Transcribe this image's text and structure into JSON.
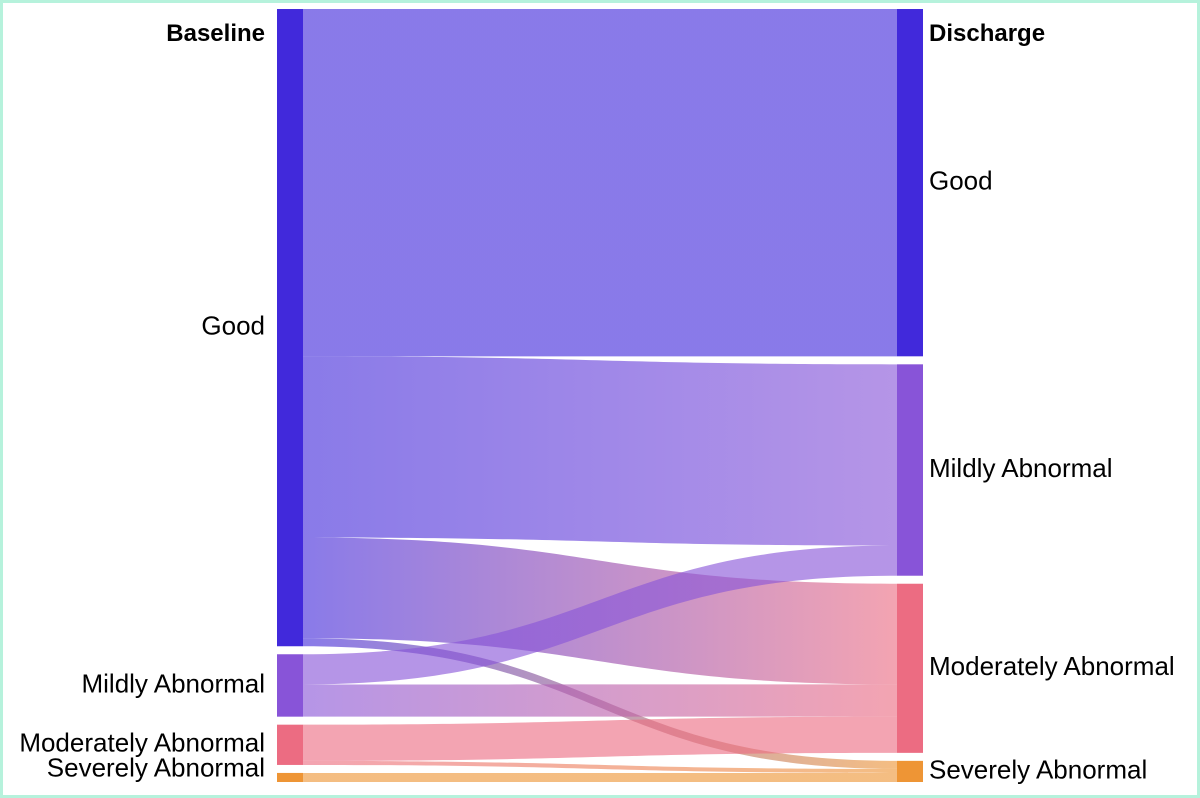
{
  "chart_data": {
    "type": "sankey",
    "columns": [
      {
        "key": "baseline",
        "title": "Baseline"
      },
      {
        "key": "discharge",
        "title": "Discharge"
      }
    ],
    "nodes": [
      {
        "id": "b_good",
        "column": "baseline",
        "label": "Good",
        "color": "#4129DB"
      },
      {
        "id": "b_mild",
        "column": "baseline",
        "label": "Mildly Abnormal",
        "color": "#8854D8"
      },
      {
        "id": "b_mod",
        "column": "baseline",
        "label": "Moderately Abnormal",
        "color": "#EC6C82"
      },
      {
        "id": "b_sev",
        "column": "baseline",
        "label": "Severely Abnormal",
        "color": "#EE9535"
      },
      {
        "id": "d_good",
        "column": "discharge",
        "label": "Good",
        "color": "#4129DB"
      },
      {
        "id": "d_mild",
        "column": "discharge",
        "label": "Mildly Abnormal",
        "color": "#8854D8"
      },
      {
        "id": "d_mod",
        "column": "discharge",
        "label": "Moderately Abnormal",
        "color": "#EC6C82"
      },
      {
        "id": "d_sev",
        "column": "discharge",
        "label": "Severely Abnormal",
        "color": "#EE9535"
      }
    ],
    "links": [
      {
        "source": "b_good",
        "target": "d_good",
        "value": 345
      },
      {
        "source": "b_good",
        "target": "d_mild",
        "value": 180
      },
      {
        "source": "b_good",
        "target": "d_mod",
        "value": 100
      },
      {
        "source": "b_good",
        "target": "d_sev",
        "value": 8
      },
      {
        "source": "b_mild",
        "target": "d_mild",
        "value": 30
      },
      {
        "source": "b_mild",
        "target": "d_mod",
        "value": 32
      },
      {
        "source": "b_mod",
        "target": "d_mod",
        "value": 36
      },
      {
        "source": "b_mod",
        "target": "d_sev",
        "value": 4
      },
      {
        "source": "b_sev",
        "target": "d_sev",
        "value": 9
      }
    ]
  }
}
